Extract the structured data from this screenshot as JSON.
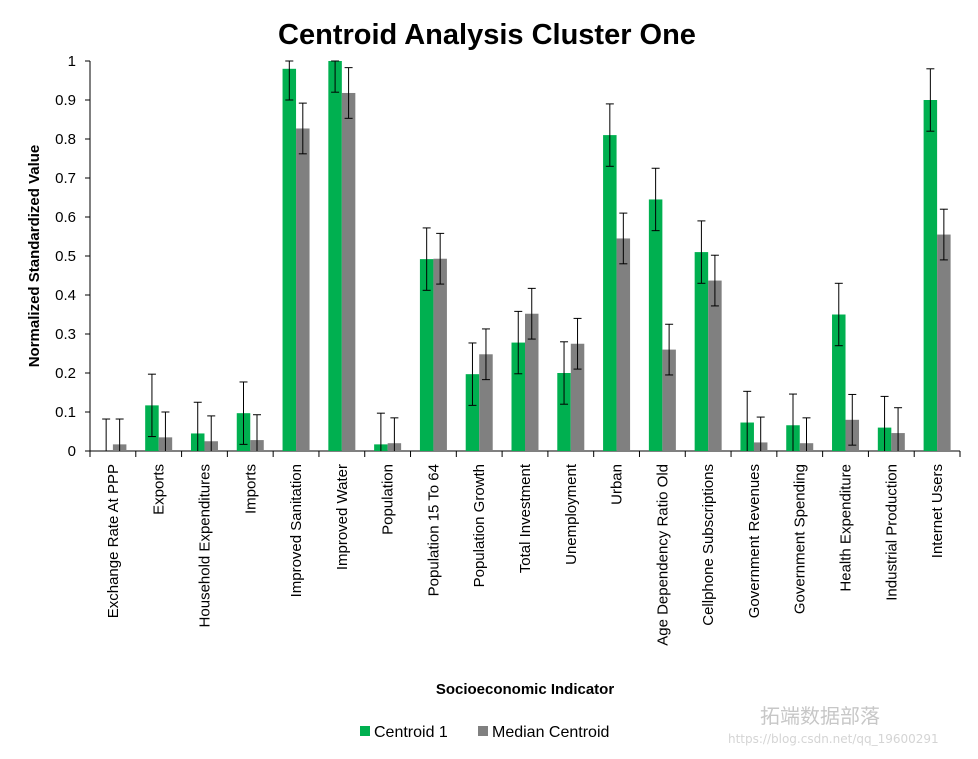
{
  "chart_data": {
    "type": "bar",
    "title": "Centroid Analysis Cluster One",
    "xlabel": "Socioeconomic Indicator",
    "ylabel": "Normalized Standardized Value",
    "ylim": [
      0,
      1
    ],
    "yticks": [
      "0",
      "0.1",
      "0.2",
      "0.3",
      "0.4",
      "0.5",
      "0.6",
      "0.7",
      "0.8",
      "0.9",
      "1"
    ],
    "grid": false,
    "legend": "bottom",
    "categories": [
      "Exchange Rate At PPP",
      "Exports",
      "Household Expenditures",
      "Imports",
      "Improved Sanitation",
      "Improved Water",
      "Population",
      "Population 15 To 64",
      "Population Growth",
      "Total Investment",
      "Unemployment",
      "Urban",
      "Age Dependency Ratio Old",
      "Cellphone Subscriptions",
      "Government Revenues",
      "Government Spending",
      "Health Expenditure",
      "Industrial Production",
      "Internet Users"
    ],
    "series": [
      {
        "name": "Centroid 1",
        "color": "#00b050",
        "values": [
          0.0,
          0.117,
          0.045,
          0.097,
          0.98,
          1.0,
          0.017,
          0.492,
          0.197,
          0.278,
          0.2,
          0.81,
          0.645,
          0.51,
          0.073,
          0.066,
          0.35,
          0.06,
          0.9
        ],
        "errors": [
          0.082,
          0.08,
          0.08,
          0.08,
          0.08,
          0.08,
          0.08,
          0.08,
          0.08,
          0.08,
          0.08,
          0.08,
          0.08,
          0.08,
          0.08,
          0.08,
          0.08,
          0.08,
          0.08
        ]
      },
      {
        "name": "Median Centroid",
        "color": "#808080",
        "values": [
          0.017,
          0.035,
          0.025,
          0.028,
          0.827,
          0.918,
          0.02,
          0.493,
          0.248,
          0.352,
          0.275,
          0.545,
          0.26,
          0.437,
          0.022,
          0.02,
          0.08,
          0.046,
          0.555
        ],
        "errors": [
          0.065,
          0.065,
          0.065,
          0.065,
          0.065,
          0.065,
          0.065,
          0.065,
          0.065,
          0.065,
          0.065,
          0.065,
          0.065,
          0.065,
          0.065,
          0.065,
          0.065,
          0.065,
          0.065
        ]
      }
    ]
  },
  "watermark": {
    "line1": "拓端数据部落",
    "line2": "https://blog.csdn.net/qq_19600291"
  }
}
